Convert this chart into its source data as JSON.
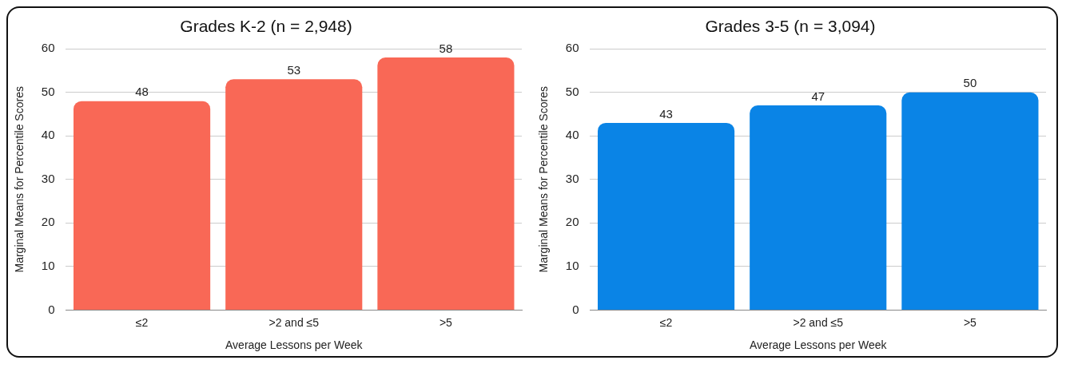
{
  "chart_data": [
    {
      "type": "bar",
      "title": "Grades K-2 (n = 2,948)",
      "xlabel": "Average Lessons per Week",
      "ylabel": "Marginal Means for Percentile Scores",
      "categories": [
        "≤2",
        ">2 and ≤5",
        ">5"
      ],
      "values": [
        48,
        53,
        58
      ],
      "color": "#f96856",
      "ylim": [
        0,
        60
      ],
      "yticks": [
        0,
        10,
        20,
        30,
        40,
        50,
        60
      ],
      "grid": "y",
      "data_labels": true,
      "legend": false
    },
    {
      "type": "bar",
      "title": "Grades 3-5 (n = 3,094)",
      "xlabel": "Average Lessons per Week",
      "ylabel": "Marginal Means for Percentile Scores",
      "categories": [
        "≤2",
        ">2 and ≤5",
        ">5"
      ],
      "values": [
        43,
        47,
        50
      ],
      "color": "#0a84e6",
      "ylim": [
        0,
        60
      ],
      "yticks": [
        0,
        10,
        20,
        30,
        40,
        50,
        60
      ],
      "grid": "y",
      "data_labels": true,
      "legend": false
    }
  ]
}
